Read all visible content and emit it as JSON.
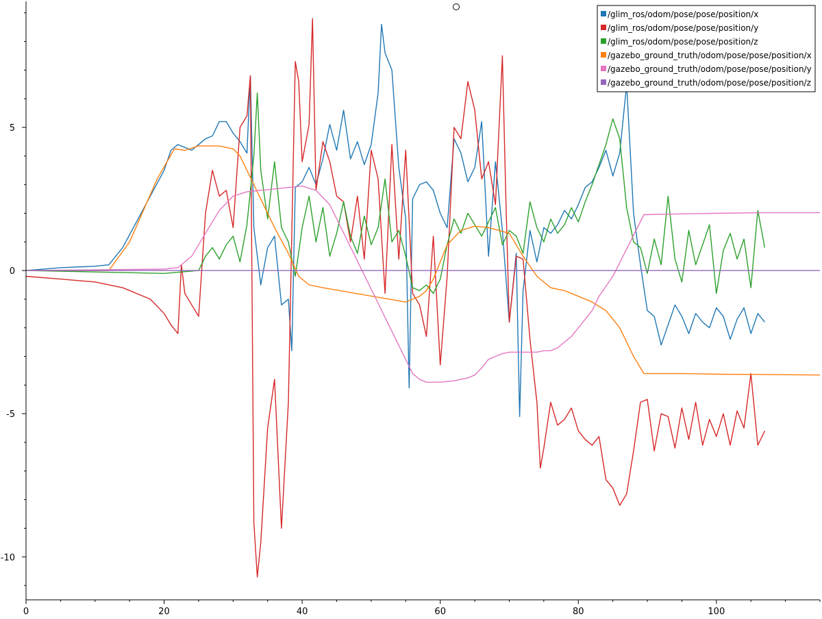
{
  "chart_data": {
    "type": "line",
    "xlim": [
      0,
      115
    ],
    "ylim": [
      -11.5,
      9.4
    ],
    "x_ticks": [
      0,
      20,
      40,
      60,
      80,
      100
    ],
    "x_tick_labels": [
      "0",
      "20",
      "40",
      "60",
      "80",
      "100"
    ],
    "y_ticks": [
      -10,
      -5,
      0,
      5
    ],
    "y_tick_labels": [
      "-10",
      "-5",
      "0",
      "5"
    ],
    "legend_position": "top-right",
    "grid": false,
    "series": [
      {
        "name": "/glim_ros/odom/pose/pose/position/x",
        "color": "#1f77b4",
        "x": [
          0,
          5,
          10,
          12,
          14,
          16,
          18,
          20,
          21,
          22,
          23,
          24,
          25,
          26,
          27,
          28,
          29,
          30,
          31,
          32,
          32.5,
          33,
          34,
          35,
          36,
          37,
          38,
          38.5,
          39,
          40,
          41,
          42,
          43,
          44,
          45,
          46,
          47,
          48,
          49,
          50,
          51,
          51.5,
          52,
          53,
          54,
          55,
          55.5,
          56,
          57,
          58,
          59,
          60,
          61,
          62,
          63,
          64,
          65,
          66,
          67,
          68,
          69,
          70,
          71,
          71.5,
          72,
          73,
          74,
          75,
          76,
          77,
          78,
          79,
          80,
          81,
          82,
          83,
          84,
          85,
          86,
          87,
          88,
          89,
          90,
          91,
          92,
          93,
          94,
          95,
          96,
          97,
          98,
          99,
          100,
          101,
          102,
          103,
          104,
          105,
          106,
          107
        ],
        "y": [
          0,
          0.1,
          0.15,
          0.2,
          0.8,
          1.7,
          2.6,
          3.5,
          4.2,
          4.4,
          4.3,
          4.2,
          4.4,
          4.6,
          4.7,
          5.2,
          5.2,
          4.8,
          4.5,
          4.1,
          6.8,
          1.5,
          -0.5,
          0.8,
          1.2,
          -1.2,
          -1,
          -2.8,
          2.9,
          3.1,
          3.6,
          3.0,
          3.9,
          5.1,
          4.2,
          5.6,
          3.9,
          4.5,
          3.7,
          4.4,
          6.2,
          8.6,
          7.6,
          7.0,
          3.6,
          1.8,
          -4.1,
          2.5,
          3.0,
          3.1,
          2.8,
          2.0,
          1.5,
          4.6,
          4.1,
          3.1,
          3.6,
          5.2,
          0.5,
          3.8,
          1.4,
          -1.8,
          0.6,
          -5.1,
          -0.7,
          1.4,
          0.3,
          1.5,
          1.3,
          1.6,
          2.1,
          1.8,
          2.3,
          2.9,
          3.1,
          3.6,
          4.2,
          3.3,
          4.1,
          6.5,
          2.0,
          0.2,
          -1.4,
          -1.6,
          -2.6,
          -1.9,
          -1.2,
          -1.6,
          -2.2,
          -1.5,
          -1.8,
          -2.0,
          -1.3,
          -1.6,
          -2.4,
          -1.7,
          -1.3,
          -2.2,
          -1.5,
          -1.8
        ]
      },
      {
        "name": "/glim_ros/odom/pose/pose/position/y",
        "color": "#d62728",
        "x": [
          0,
          5,
          10,
          14,
          18,
          20,
          21,
          22,
          22.5,
          23,
          24,
          25,
          26,
          27,
          28,
          29,
          30,
          31,
          32,
          32.5,
          33,
          33.5,
          34,
          35,
          36,
          37,
          38,
          39,
          39.5,
          40,
          41,
          41.5,
          42,
          43,
          44,
          45,
          46,
          47,
          48,
          49,
          50,
          51,
          52,
          53,
          54,
          55,
          56,
          57,
          58,
          59,
          60,
          61,
          62,
          63,
          64,
          65,
          66,
          67,
          68,
          69,
          69.5,
          70,
          71,
          72,
          73,
          74,
          74.5,
          75,
          76,
          77,
          78,
          79,
          80,
          81,
          82,
          83,
          84,
          85,
          86,
          87,
          88,
          89,
          90,
          91,
          92,
          93,
          94,
          95,
          96,
          97,
          98,
          99,
          100,
          101,
          102,
          103,
          104,
          105,
          106,
          107
        ],
        "y": [
          -0.2,
          -0.3,
          -0.4,
          -0.6,
          -1.0,
          -1.5,
          -1.9,
          -2.2,
          0.2,
          -0.8,
          -1.2,
          -1.6,
          2.0,
          3.5,
          2.6,
          2.8,
          1.5,
          5.0,
          5.4,
          6.8,
          -8.8,
          -10.7,
          -9.5,
          -5.5,
          -3.8,
          -9.0,
          -4.6,
          7.3,
          6.6,
          3.8,
          5.1,
          8.8,
          2.8,
          4.5,
          3.8,
          2.6,
          2.4,
          1.0,
          2.6,
          0.4,
          4.2,
          3.2,
          -0.8,
          4.4,
          0.4,
          4.2,
          -0.8,
          -1.2,
          -2.3,
          1.2,
          -3.3,
          -0.2,
          5.0,
          4.6,
          6.6,
          5.6,
          3.2,
          3.8,
          2.3,
          7.5,
          2.6,
          -1.8,
          0.5,
          0.4,
          -2.4,
          -4.6,
          -6.9,
          -6.2,
          -4.6,
          -5.4,
          -5.2,
          -4.8,
          -5.6,
          -5.9,
          -6.1,
          -5.8,
          -7.3,
          -7.6,
          -8.2,
          -7.8,
          -6.3,
          -4.6,
          -4.5,
          -6.3,
          -5.0,
          -5.1,
          -6.2,
          -4.8,
          -5.9,
          -4.6,
          -6.1,
          -5.2,
          -5.8,
          -5.0,
          -6.1,
          -4.9,
          -5.5,
          -3.6,
          -6.1,
          -5.6
        ]
      },
      {
        "name": "/glim_ros/odom/pose/pose/position/z",
        "color": "#2ca02c",
        "x": [
          0,
          10,
          20,
          25,
          26,
          27,
          28,
          29,
          30,
          31,
          32,
          33,
          33.5,
          34,
          35,
          36,
          37,
          38,
          39,
          40,
          41,
          42,
          43,
          44,
          45,
          46,
          47,
          48,
          49,
          50,
          51,
          52,
          53,
          54,
          55,
          56,
          57,
          58,
          59,
          60,
          61,
          62,
          63,
          64,
          65,
          66,
          67,
          68,
          69,
          70,
          71,
          72,
          73,
          74,
          75,
          76,
          77,
          78,
          79,
          80,
          81,
          82,
          83,
          84,
          85,
          86,
          87,
          88,
          89,
          90,
          91,
          92,
          93,
          94,
          95,
          96,
          97,
          98,
          99,
          100,
          101,
          102,
          103,
          104,
          105,
          106,
          107
        ],
        "y": [
          0,
          -0.05,
          -0.1,
          0.0,
          0.5,
          0.8,
          0.4,
          0.9,
          1.2,
          0.3,
          1.6,
          4.0,
          6.2,
          3.5,
          1.8,
          3.8,
          1.5,
          1.0,
          -0.2,
          1.5,
          2.6,
          1.0,
          2.2,
          0.5,
          1.3,
          2.4,
          1.2,
          0.6,
          1.9,
          0.9,
          1.5,
          3.2,
          1.0,
          1.4,
          0.5,
          -0.6,
          -0.7,
          -0.5,
          -0.8,
          -0.3,
          0.9,
          1.8,
          1.3,
          2.0,
          1.6,
          1.2,
          1.7,
          2.2,
          0.9,
          1.4,
          1.2,
          0.6,
          2.4,
          1.5,
          1.0,
          1.8,
          1.3,
          1.6,
          2.2,
          1.7,
          2.4,
          3.0,
          3.7,
          4.4,
          5.3,
          4.6,
          2.2,
          1.0,
          0.8,
          -0.1,
          1.1,
          0.2,
          2.6,
          0.4,
          -0.4,
          1.4,
          0.2,
          0.9,
          1.6,
          -0.8,
          0.7,
          1.3,
          0.4,
          1.1,
          -0.6,
          2.1,
          0.8
        ]
      },
      {
        "name": "/gazebo_ground_truth/odom/pose/pose/position/x",
        "color": "#ff7f0e",
        "x": [
          0,
          12,
          15,
          19,
          21.5,
          23,
          25,
          28,
          30,
          31,
          33,
          36,
          38,
          39.5,
          41,
          43,
          55,
          57,
          58,
          59,
          60,
          61,
          63,
          65,
          67,
          70,
          72,
          74,
          76,
          78,
          80,
          82,
          84,
          86,
          88,
          89.5,
          95,
          100,
          107,
          115
        ],
        "y": [
          0,
          0,
          1.0,
          3.2,
          4.25,
          4.2,
          4.35,
          4.35,
          4.25,
          4.0,
          3.0,
          1.5,
          0.6,
          -0.2,
          -0.5,
          -0.6,
          -1.1,
          -0.9,
          -0.7,
          -0.3,
          0.3,
          0.9,
          1.4,
          1.55,
          1.5,
          1.3,
          0.5,
          -0.2,
          -0.6,
          -0.7,
          -0.9,
          -1.1,
          -1.4,
          -2.0,
          -3.0,
          -3.6,
          -3.6,
          -3.62,
          -3.63,
          -3.65
        ]
      },
      {
        "name": "/gazebo_ground_truth/odom/pose/pose/position/y",
        "color": "#e377c2",
        "x": [
          0,
          20,
          22,
          24,
          26,
          28,
          30,
          32,
          34,
          36,
          38,
          40,
          42,
          44,
          56,
          57,
          58,
          60,
          62,
          64,
          65,
          66,
          67,
          68,
          69,
          70,
          72,
          74,
          75,
          76,
          77,
          79,
          80,
          82,
          83,
          85,
          89.5,
          95,
          100,
          107,
          115
        ],
        "y": [
          0.0,
          0.05,
          0.1,
          0.5,
          1.3,
          2.1,
          2.6,
          2.75,
          2.8,
          2.85,
          2.9,
          2.95,
          2.8,
          2.3,
          -3.6,
          -3.8,
          -3.9,
          -3.9,
          -3.85,
          -3.75,
          -3.65,
          -3.4,
          -3.1,
          -3.0,
          -2.9,
          -2.85,
          -2.85,
          -2.85,
          -2.8,
          -2.8,
          -2.7,
          -2.3,
          -2.0,
          -1.4,
          -0.9,
          -0.2,
          1.95,
          1.98,
          2.0,
          2.02,
          2.02
        ]
      },
      {
        "name": "/gazebo_ground_truth/odom/pose/pose/position/z",
        "color": "#9467bd",
        "x": [
          0,
          20,
          40,
          60,
          80,
          100,
          115
        ],
        "y": [
          0,
          0,
          0,
          0,
          0,
          0,
          0
        ]
      }
    ]
  }
}
